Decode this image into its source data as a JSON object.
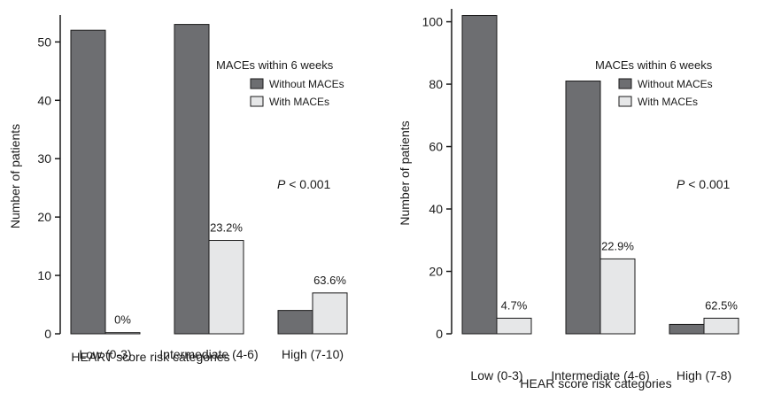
{
  "chart_data": [
    {
      "type": "bar",
      "ylabel": "Number of patients",
      "xlabel": "HEART score risk categories",
      "categories": [
        "Low (0-3)",
        "Intermediate (4-6)",
        "High (7-10)"
      ],
      "series": [
        {
          "name": "Without MACEs",
          "values": [
            52,
            53,
            4
          ],
          "color": "#6d6e71"
        },
        {
          "name": "With MACEs",
          "values": [
            0.2,
            16,
            7
          ],
          "color": "#e6e7e8"
        }
      ],
      "data_labels": [
        "0%",
        "23.2%",
        "63.6%"
      ],
      "ylim": [
        0,
        54
      ],
      "yticks": [
        0,
        10,
        20,
        30,
        40,
        50
      ],
      "legend_title": "MACEs within 6 weeks",
      "legend_position": "top-right",
      "annotation": {
        "italic": "P",
        "rest": " < 0.001"
      }
    },
    {
      "type": "bar",
      "ylabel": "Number of patients",
      "xlabel": "HEAR score risk categories",
      "categories": [
        "Low (0-3)",
        "Intermediate (4-6)",
        "High (7-8)"
      ],
      "series": [
        {
          "name": "Without MACEs",
          "values": [
            102,
            81,
            3
          ],
          "color": "#6d6e71"
        },
        {
          "name": "With MACEs",
          "values": [
            5,
            24,
            5
          ],
          "color": "#e6e7e8"
        }
      ],
      "data_labels": [
        "4.7%",
        "22.9%",
        "62.5%"
      ],
      "ylim": [
        0,
        103
      ],
      "yticks": [
        0,
        20,
        40,
        60,
        80,
        100
      ],
      "legend_title": "MACEs within 6 weeks",
      "legend_position": "top-right",
      "annotation": {
        "italic": "P",
        "rest": " < 0.001"
      }
    }
  ]
}
